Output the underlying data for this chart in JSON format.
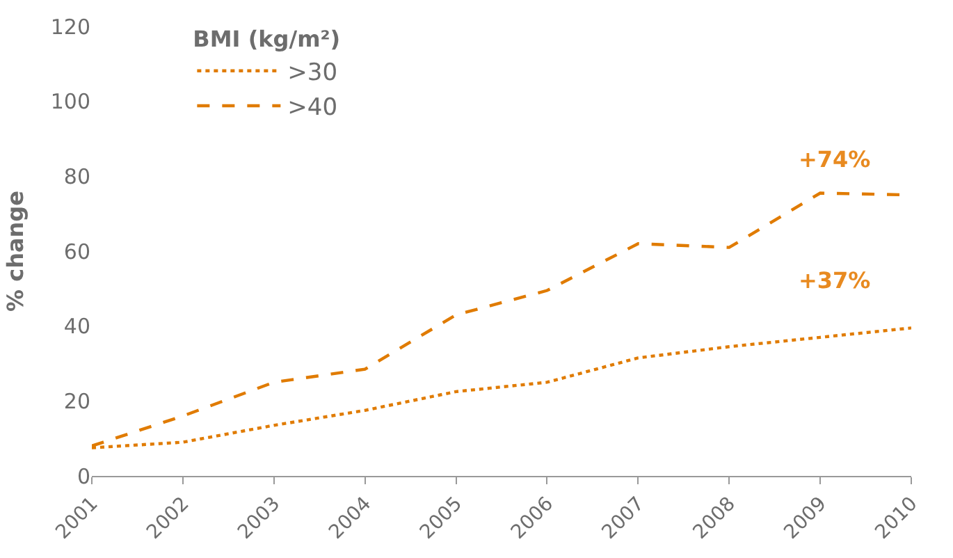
{
  "chart_data": {
    "type": "line",
    "ylabel": "% change",
    "legend_title": "BMI (kg/m²)",
    "x": [
      2001,
      2002,
      2003,
      2004,
      2005,
      2006,
      2007,
      2008,
      2009,
      2010
    ],
    "xlim": [
      2001,
      2010
    ],
    "xticks": [
      2001,
      2002,
      2003,
      2004,
      2005,
      2006,
      2007,
      2008,
      2009,
      2010
    ],
    "ylim": [
      0,
      120
    ],
    "yticks": [
      0,
      20,
      40,
      60,
      80,
      100,
      120
    ],
    "legend": "top left",
    "marker": "none",
    "series": [
      {
        "name": ">30",
        "color": "#e07b00",
        "line_style": "dotted",
        "values": [
          7.5,
          9,
          13.5,
          17.5,
          22.5,
          25,
          31.5,
          34.5,
          37,
          39.5
        ]
      },
      {
        "name": ">40",
        "color": "#e07b00",
        "line_style": "dashed",
        "values": [
          8,
          16,
          25,
          28.5,
          43,
          49.5,
          62,
          61,
          75.5,
          75
        ]
      }
    ],
    "annotations": [
      "+74%",
      "+37%"
    ]
  }
}
